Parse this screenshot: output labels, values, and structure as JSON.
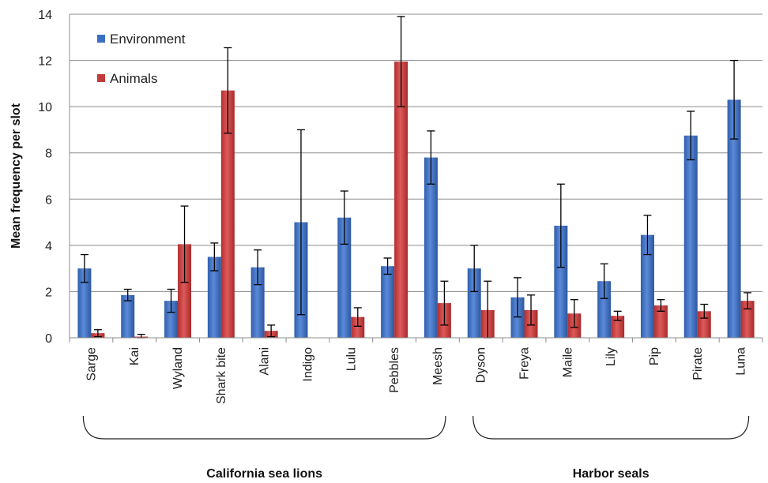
{
  "chart_data": {
    "type": "bar",
    "ylabel": "Mean frequency per slot",
    "xlabel": "",
    "ylim": [
      0,
      14
    ],
    "yticks": [
      0,
      2,
      4,
      6,
      8,
      10,
      12,
      14
    ],
    "grid": true,
    "legend_position": "top-left",
    "categories": [
      "Sarge",
      "Kai",
      "Wyland",
      "Shark bite",
      "Alani",
      "Indigo",
      "Lulu",
      "Pebbles",
      "Meesh",
      "Dyson",
      "Freya",
      "Maile",
      "Lily",
      "Pip",
      "Pirate",
      "Luna"
    ],
    "series": [
      {
        "name": "Environment",
        "color": "#3b6fc4",
        "values": [
          3.0,
          1.85,
          1.6,
          3.5,
          3.05,
          5.0,
          5.2,
          3.1,
          7.8,
          3.0,
          1.75,
          4.85,
          2.45,
          4.45,
          8.75,
          10.3
        ],
        "error": [
          0.6,
          0.25,
          0.5,
          0.6,
          0.75,
          4.0,
          1.15,
          0.35,
          1.15,
          1.0,
          0.85,
          1.8,
          0.75,
          0.85,
          1.05,
          1.7
        ]
      },
      {
        "name": "Animals",
        "color": "#c43b3b",
        "values": [
          0.2,
          0.05,
          4.05,
          10.7,
          0.3,
          0.0,
          0.9,
          11.95,
          1.5,
          1.2,
          1.2,
          1.05,
          0.95,
          1.4,
          1.15,
          1.6
        ],
        "error": [
          0.15,
          0.1,
          1.65,
          1.85,
          0.25,
          0.0,
          0.4,
          1.95,
          0.95,
          1.25,
          0.65,
          0.6,
          0.2,
          0.25,
          0.3,
          0.35
        ]
      }
    ],
    "groups": [
      {
        "label": "California sea lions",
        "from": 0,
        "to": 8
      },
      {
        "label": "Harbor seals",
        "from": 9,
        "to": 15
      }
    ]
  }
}
